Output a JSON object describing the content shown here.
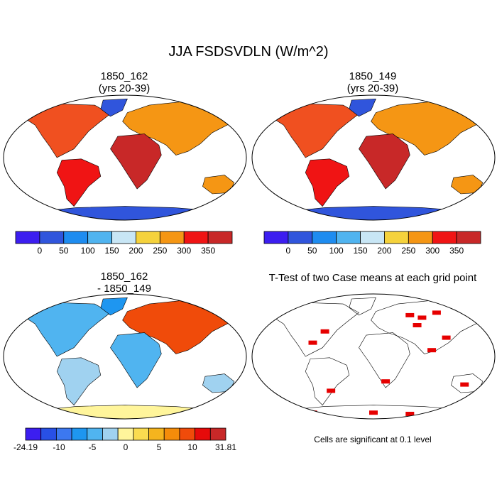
{
  "figure": {
    "title": "JJA FSDSVDLN (W/m^2)"
  },
  "panels": [
    {
      "id": "case1",
      "title_line1": "1850_162",
      "title_line2": "(yrs 20-39)"
    },
    {
      "id": "case2",
      "title_line1": "1850_149",
      "title_line2": "(yrs 20-39)"
    },
    {
      "id": "diff",
      "title_line1": "1850_162",
      "title_line2": "- 1850_149"
    },
    {
      "id": "ttest",
      "title_line1": "T-Test of two Case means at each grid point",
      "title_line2": ""
    }
  ],
  "ttest_note": "Cells are significant at 0.1 level",
  "chart_data": [
    {
      "type": "heatmap",
      "title": "1850_162 (yrs 20-39)",
      "projection": "robinson",
      "colorbar": {
        "levels": [
          "0",
          "50",
          "100",
          "150",
          "200",
          "250",
          "300",
          "350"
        ],
        "colors": [
          "#3c1ef0",
          "#3055dc",
          "#1e8cf0",
          "#50b4f0",
          "#c8e6f5",
          "#f5d23c",
          "#f59614",
          "#f01414",
          "#c82828"
        ]
      }
    },
    {
      "type": "heatmap",
      "title": "1850_149 (yrs 20-39)",
      "projection": "robinson",
      "colorbar": {
        "levels": [
          "0",
          "50",
          "100",
          "150",
          "200",
          "250",
          "300",
          "350"
        ],
        "colors": [
          "#3c1ef0",
          "#3055dc",
          "#1e8cf0",
          "#50b4f0",
          "#c8e6f5",
          "#f5d23c",
          "#f59614",
          "#f01414",
          "#c82828"
        ]
      }
    },
    {
      "type": "heatmap",
      "title": "1850_162 - 1850_149",
      "projection": "robinson",
      "colorbar": {
        "levels": [
          "-24.19",
          "-10",
          "-5",
          "0",
          "5",
          "10",
          "31.81"
        ],
        "colors": [
          "#3c1ef0",
          "#2850e6",
          "#3c78f0",
          "#1e96f0",
          "#50b4f0",
          "#a0d2f0",
          "#fff59b",
          "#fadc50",
          "#f5b41e",
          "#f58c0a",
          "#f04b0a",
          "#e60a0a",
          "#c82828"
        ]
      }
    },
    {
      "type": "heatmap",
      "title": "T-Test of two Case means at each grid point",
      "projection": "robinson",
      "significance_color": "#e60000"
    }
  ]
}
